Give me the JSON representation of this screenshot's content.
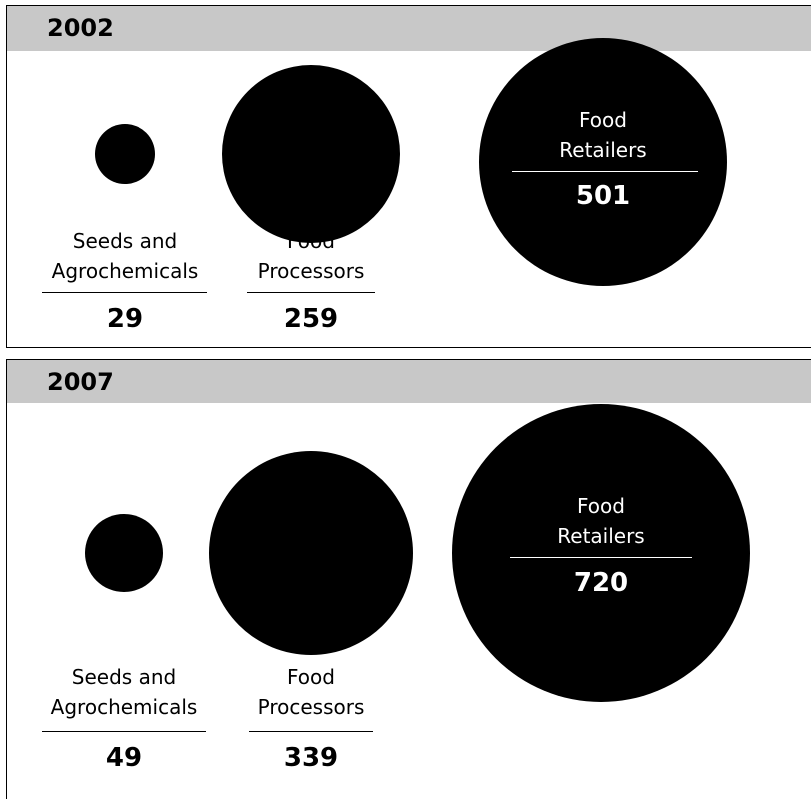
{
  "chart_data": [
    {
      "type": "bubble",
      "title": "2002",
      "categories": [
        "Seeds and Agrochemicals",
        "Food Processors",
        "Food Retailers"
      ],
      "values": [
        29,
        259,
        501
      ],
      "labels": [
        "Seeds and\nAgrochemicals",
        "Food\nProcessors",
        "Food\nRetailers"
      ],
      "value_labels": [
        "29",
        "259",
        "501"
      ],
      "bubble_color": "#000000",
      "header_color": "#c8c8c8"
    },
    {
      "type": "bubble",
      "title": "2007",
      "categories": [
        "Seeds and Agrochemicals",
        "Food Processors",
        "Food Retailers"
      ],
      "values": [
        49,
        339,
        720
      ],
      "labels": [
        "Seeds and\nAgrochemicals",
        "Food\nProcessors",
        "Food\nRetailers"
      ],
      "value_labels": [
        "49",
        "339",
        "720"
      ],
      "bubble_color": "#000000",
      "header_color": "#c8c8c8"
    }
  ]
}
